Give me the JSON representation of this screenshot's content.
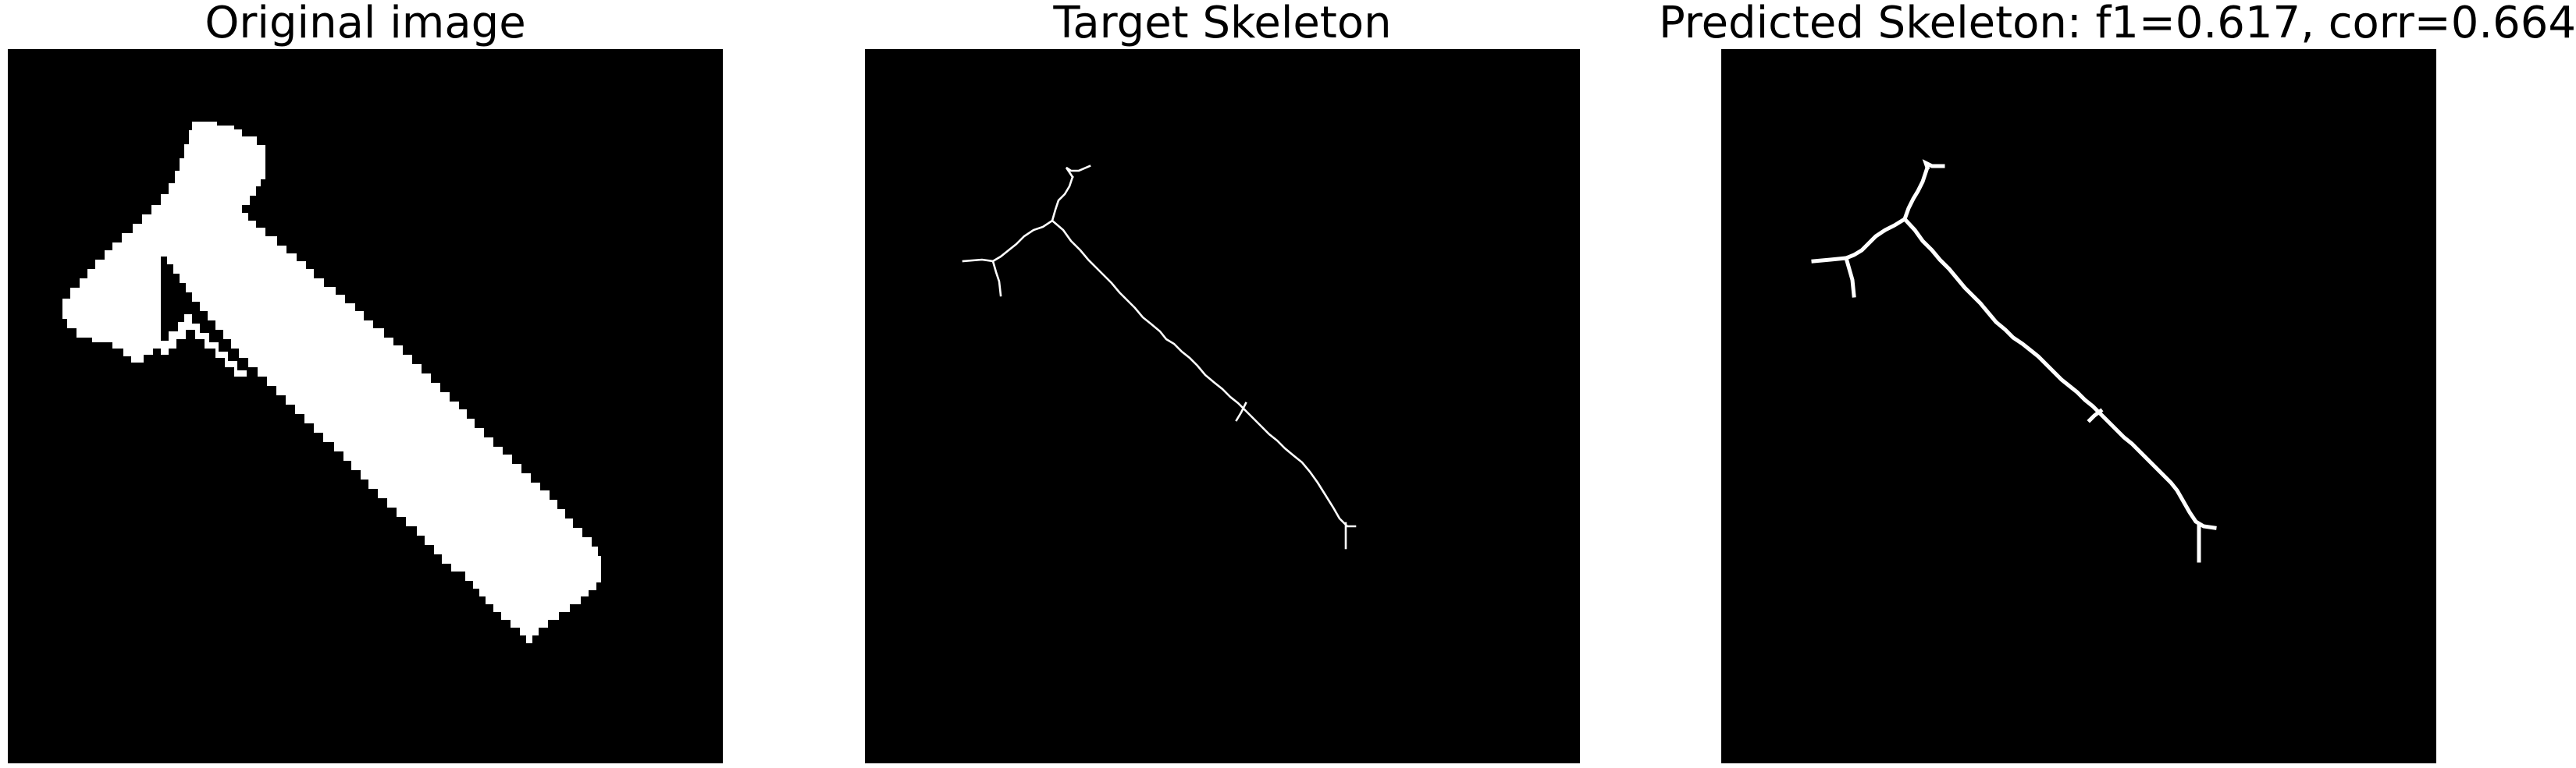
{
  "panels": [
    {
      "title": "Original image",
      "content": "binary-mask-hammer-shape"
    },
    {
      "title": "Target Skeleton",
      "content": "thin-skeleton-lines"
    },
    {
      "title": "Predicted Skeleton: f1=0.617, corr=0.664",
      "content": "thick-skeleton-lines"
    }
  ],
  "colors": {
    "background": "#000000",
    "foreground": "#ffffff",
    "page": "#ffffff",
    "title_text": "#000000"
  }
}
